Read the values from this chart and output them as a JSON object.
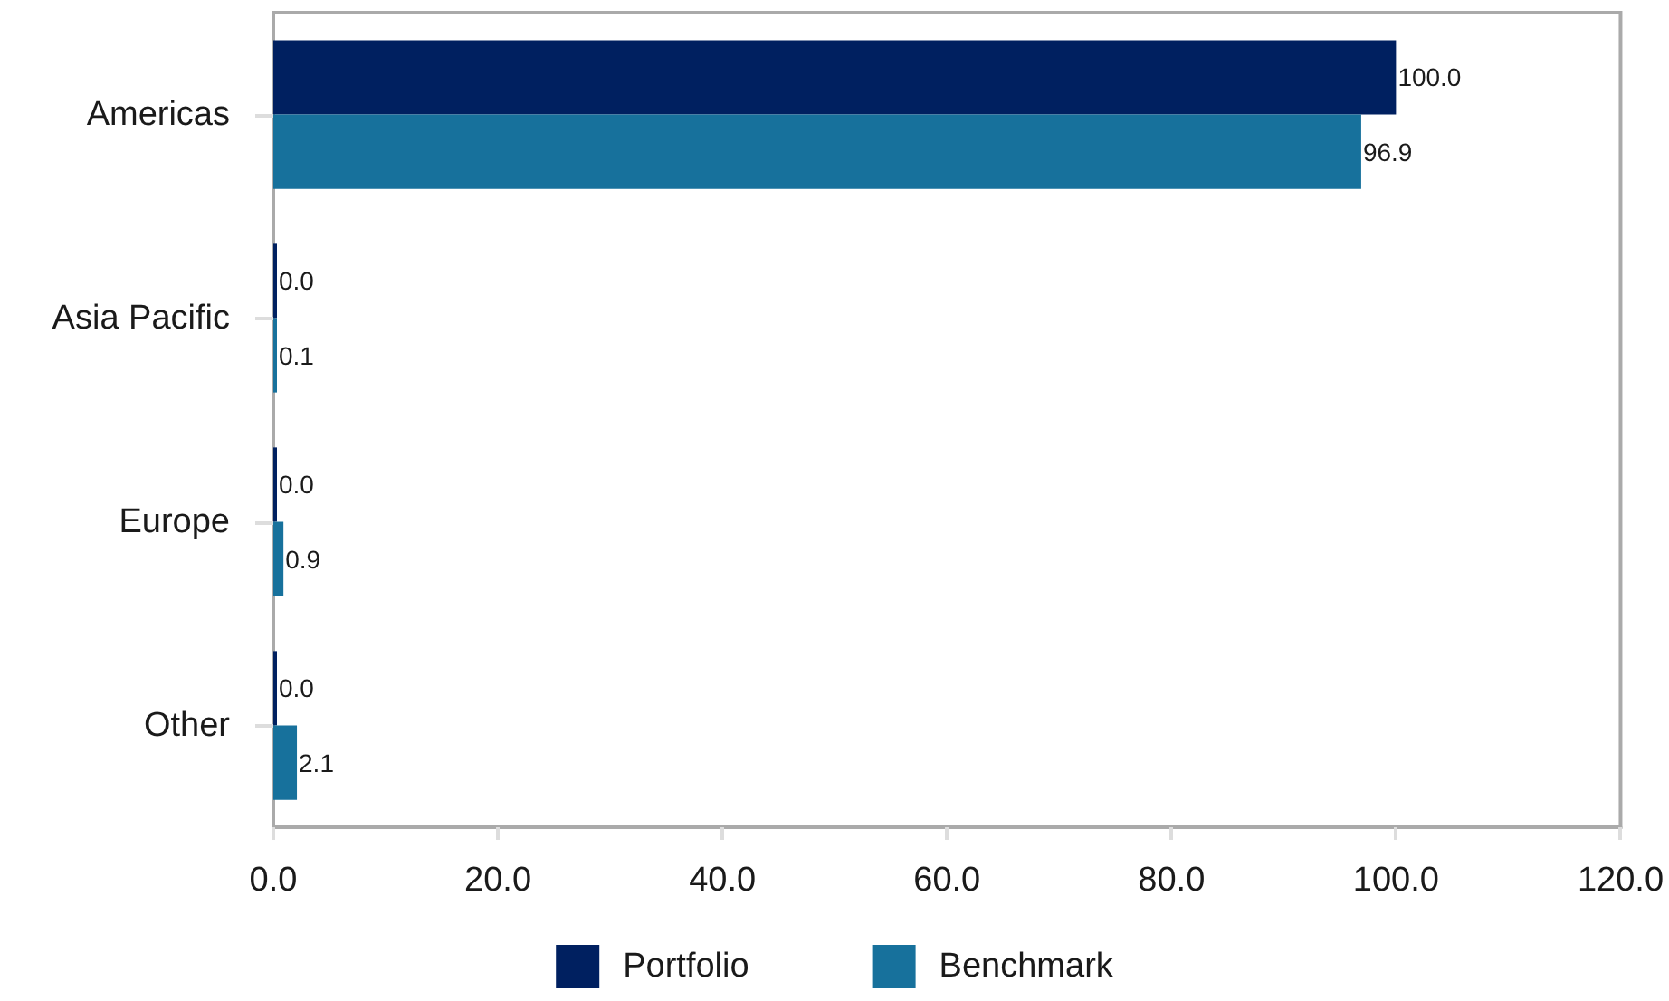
{
  "chart_data": {
    "type": "bar",
    "orientation": "horizontal",
    "categories": [
      "Americas",
      "Asia Pacific",
      "Europe",
      "Other"
    ],
    "series": [
      {
        "name": "Portfolio",
        "color": "#002060",
        "values": [
          100.0,
          0.0,
          0.0,
          0.0
        ],
        "value_labels": [
          "100.0",
          "0.0",
          "0.0",
          "0.0"
        ]
      },
      {
        "name": "Benchmark",
        "color": "#17719c",
        "values": [
          96.9,
          0.1,
          0.9,
          2.1
        ],
        "value_labels": [
          "96.9",
          "0.1",
          "0.9",
          "2.1"
        ]
      }
    ],
    "xlim": [
      0,
      120
    ],
    "xticks": [
      {
        "value": 0,
        "label": "0.0"
      },
      {
        "value": 20,
        "label": "20.0"
      },
      {
        "value": 40,
        "label": "40.0"
      },
      {
        "value": 60,
        "label": "60.0"
      },
      {
        "value": 80,
        "label": "80.0"
      },
      {
        "value": 100,
        "label": "100.0"
      },
      {
        "value": 120,
        "label": "120.0"
      }
    ],
    "grid": false,
    "legend": "bottom"
  }
}
